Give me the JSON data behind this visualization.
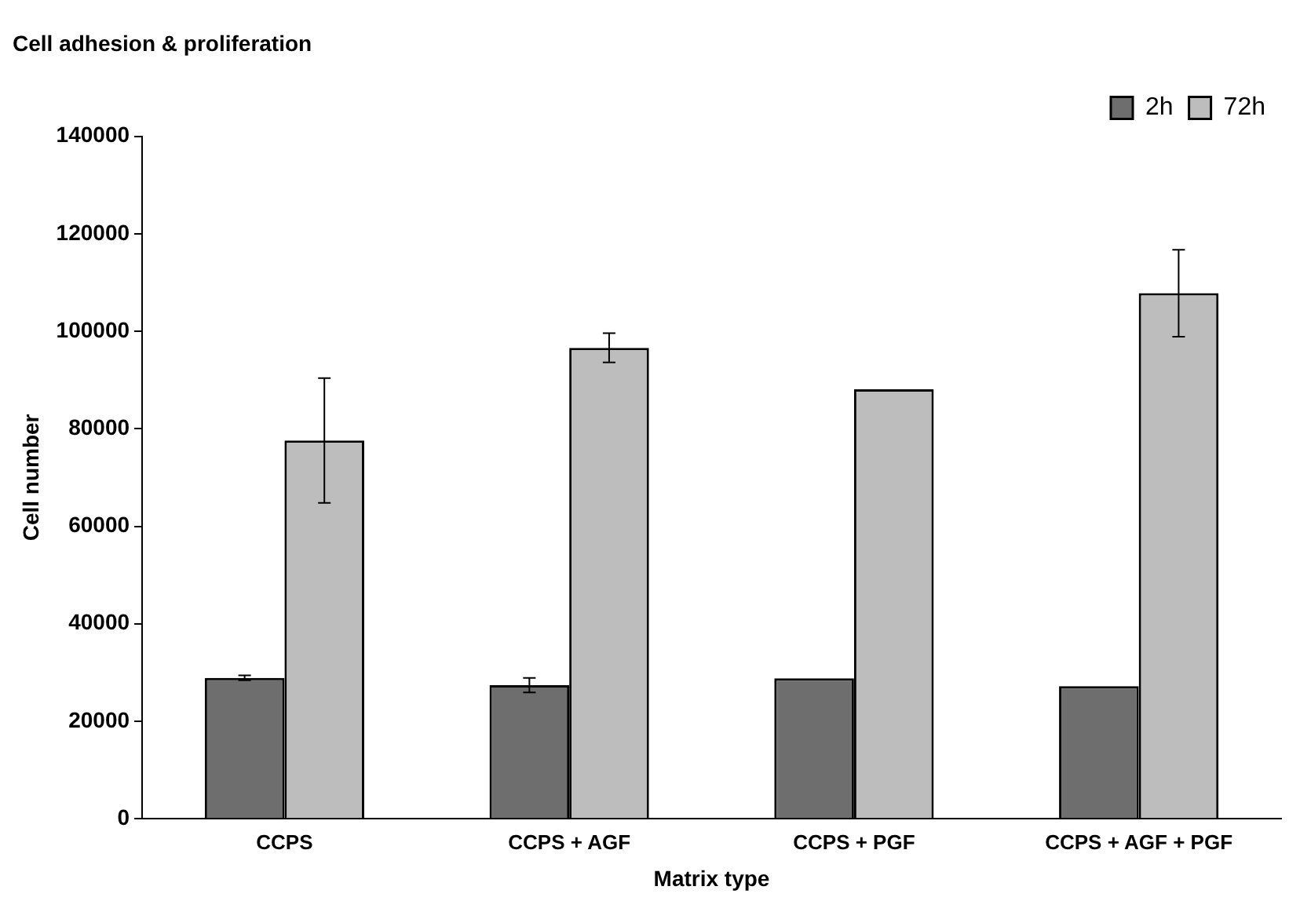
{
  "chart_data": {
    "type": "bar",
    "title": "Cell adhesion & proliferation",
    "xlabel": "Matrix type",
    "ylabel": "Cell number",
    "categories": [
      "CCPS",
      "CCPS + AGF",
      "CCPS + PGF",
      "CCPS + AGF + PGF"
    ],
    "series": [
      {
        "name": "2h",
        "color": "#6e6e6e",
        "values": [
          28900,
          27400,
          28800,
          27200
        ],
        "errors": [
          500,
          1500,
          null,
          null
        ]
      },
      {
        "name": "72h",
        "color": "#bdbdbd",
        "values": [
          77600,
          96600,
          88100,
          107800
        ],
        "errors": [
          12800,
          3000,
          null,
          8900
        ]
      }
    ],
    "ylim": [
      0,
      140000
    ],
    "yticks": [
      0,
      20000,
      40000,
      60000,
      80000,
      100000,
      120000,
      140000
    ],
    "grid": false,
    "legend": "top right"
  }
}
